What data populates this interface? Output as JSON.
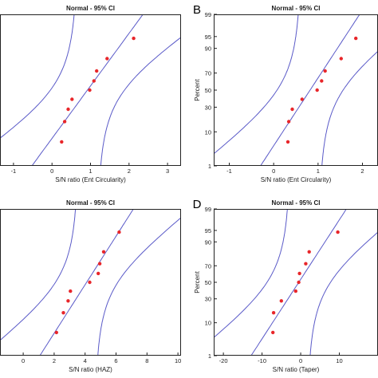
{
  "chart_data": [
    {
      "type": "scatter",
      "panel_label": "",
      "title": "Normal - 95% CI",
      "xlabel": "S/N ratio (Ent Circularity)",
      "ylabel": "",
      "xlim": [
        -1.35,
        3.35
      ],
      "xticks": [
        "-1",
        "0",
        "1",
        "2",
        "3"
      ],
      "yticks": [],
      "ylim_percent": [
        1,
        99
      ],
      "mu": 0.92,
      "sigma": 0.62,
      "series": [
        {
          "x": [
            0.25,
            0.33,
            0.42,
            0.52,
            0.98,
            1.09,
            1.16,
            1.43,
            2.12
          ],
          "y": [
            5.6,
            16.7,
            27.8,
            38.9,
            50,
            61.1,
            72.2,
            83.3,
            94.4
          ]
        }
      ],
      "colors": {
        "points": "#e8262a",
        "lines": "#5a5ac8",
        "frame": "#222222"
      }
    },
    {
      "type": "scatter",
      "panel_label": "B",
      "title": "Normal - 95% CI",
      "xlabel": "S/N ratio (Ent Circularity)",
      "ylabel": "Percent",
      "xlim": [
        -1.35,
        2.35
      ],
      "xticks": [
        "-1",
        "0",
        "1",
        "2"
      ],
      "yticks": [
        "1",
        "10",
        "30",
        "50",
        "70",
        "90",
        "95",
        "99"
      ],
      "ylim_percent": [
        1,
        99
      ],
      "mu": 0.82,
      "sigma": 0.48,
      "series": [
        {
          "x": [
            0.32,
            0.34,
            0.42,
            0.64,
            0.98,
            1.08,
            1.16,
            1.52,
            1.85
          ],
          "y": [
            5.6,
            16.7,
            27.8,
            38.9,
            50,
            61.1,
            72.2,
            83.3,
            94.4
          ]
        }
      ],
      "colors": {
        "points": "#e8262a",
        "lines": "#5a5ac8",
        "frame": "#222222"
      }
    },
    {
      "type": "scatter",
      "panel_label": "",
      "title": "Normal - 95% CI",
      "xlabel": "S/N ratio (HAZ)",
      "ylabel": "",
      "xlim": [
        -1.5,
        10.2
      ],
      "xticks": [
        "0",
        "2",
        "4",
        "6",
        "8",
        "10"
      ],
      "yticks": [],
      "ylim_percent": [
        1,
        99
      ],
      "mu": 4.1,
      "sigma": 1.3,
      "series": [
        {
          "x": [
            2.15,
            2.6,
            2.9,
            3.05,
            4.3,
            4.85,
            4.95,
            5.2,
            6.2
          ],
          "y": [
            5.6,
            16.7,
            27.8,
            38.9,
            50,
            61.1,
            72.2,
            83.3,
            94.4
          ]
        }
      ],
      "colors": {
        "points": "#e8262a",
        "lines": "#5a5ac8",
        "frame": "#222222"
      }
    },
    {
      "type": "scatter",
      "panel_label": "D",
      "title": "Normal - 95% CI",
      "xlabel": "S/N ratio (Taper)",
      "ylabel": "Percent",
      "xlim": [
        -22.5,
        20
      ],
      "xticks": [
        "-20",
        "-10",
        "0",
        "10"
      ],
      "yticks": [
        "1",
        "10",
        "30",
        "50",
        "70",
        "90",
        "95",
        "99"
      ],
      "ylim_percent": [
        1,
        99
      ],
      "mu": -0.5,
      "sigma": 5.3,
      "series": [
        {
          "x": [
            -7.2,
            -7.0,
            -5.0,
            -1.3,
            -0.5,
            -0.3,
            1.3,
            2.2,
            9.6
          ],
          "y": [
            5.6,
            16.7,
            27.8,
            38.9,
            50,
            61.1,
            72.2,
            83.3,
            94.4
          ]
        }
      ],
      "colors": {
        "points": "#e8262a",
        "lines": "#5a5ac8",
        "frame": "#222222"
      }
    }
  ]
}
